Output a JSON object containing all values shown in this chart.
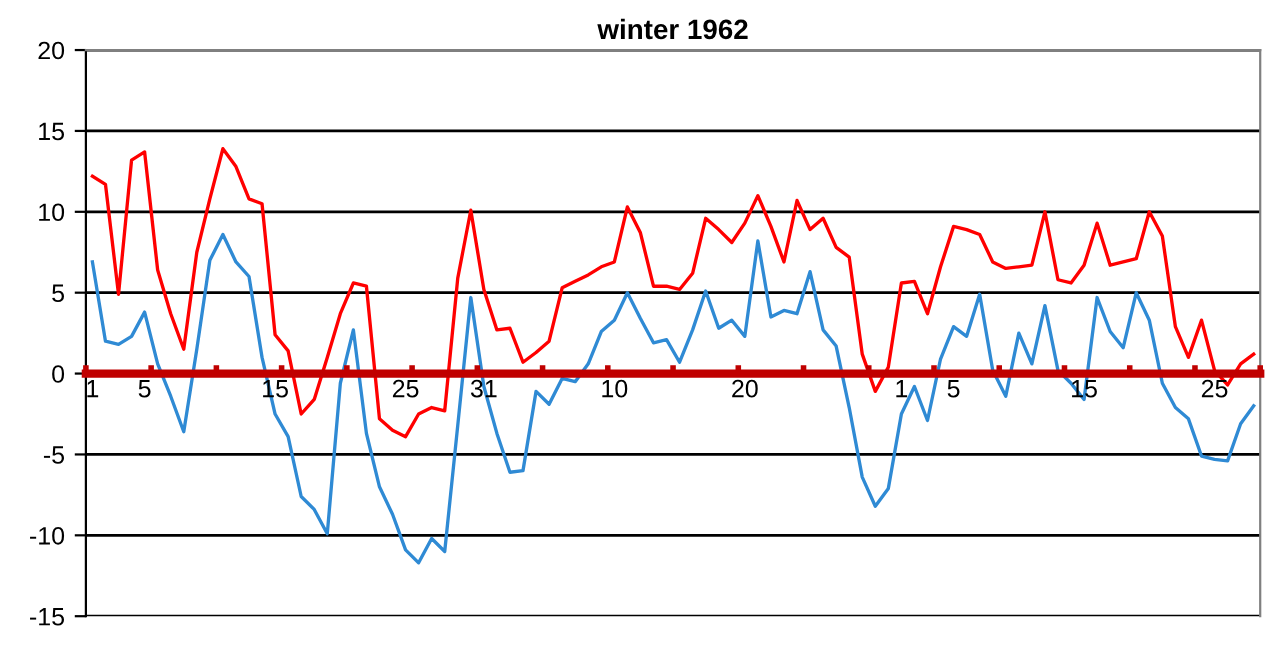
{
  "chart_data": {
    "type": "line",
    "title": "winter 1962",
    "categories": [
      "1",
      null,
      null,
      null,
      "5",
      null,
      null,
      null,
      null,
      null,
      null,
      null,
      null,
      null,
      "15",
      null,
      null,
      null,
      null,
      null,
      null,
      null,
      null,
      null,
      "25",
      null,
      null,
      null,
      null,
      null,
      "31",
      null,
      null,
      null,
      null,
      null,
      null,
      null,
      null,
      null,
      "10",
      null,
      null,
      null,
      null,
      null,
      null,
      null,
      null,
      null,
      "20",
      null,
      null,
      null,
      null,
      null,
      null,
      null,
      null,
      null,
      null,
      null,
      "1",
      null,
      null,
      null,
      "5",
      null,
      null,
      null,
      null,
      null,
      null,
      null,
      null,
      null,
      "15",
      null,
      null,
      null,
      null,
      null,
      null,
      null,
      null,
      null,
      "25",
      null,
      null,
      null
    ],
    "series": [
      {
        "color": "#ff0000",
        "values": [
          12.2,
          11.7,
          4.9,
          13.2,
          13.7,
          6.4,
          3.7,
          1.5,
          7.5,
          10.8,
          13.9,
          12.8,
          10.8,
          10.5,
          2.4,
          1.4,
          -2.5,
          -1.6,
          1.0,
          3.7,
          5.6,
          5.4,
          -2.8,
          -3.5,
          -3.9,
          -2.5,
          -2.1,
          -2.3,
          5.9,
          10.1,
          5.2,
          2.7,
          2.8,
          0.7,
          1.3,
          2.0,
          5.3,
          5.7,
          6.1,
          6.6,
          6.9,
          10.3,
          8.7,
          5.4,
          5.4,
          5.2,
          6.2,
          9.6,
          8.9,
          8.1,
          9.3,
          11.0,
          9.1,
          6.9,
          10.7,
          8.9,
          9.6,
          7.8,
          7.2,
          1.2,
          -1.1,
          0.4,
          5.6,
          5.7,
          3.7,
          6.6,
          9.1,
          8.9,
          8.6,
          6.9,
          6.5,
          6.6,
          6.7,
          10.0,
          5.8,
          5.6,
          6.7,
          9.3,
          6.7,
          6.9,
          7.1,
          10.0,
          8.5,
          2.9,
          1.0,
          3.3,
          0.2,
          -0.7,
          0.6,
          1.2
        ]
      },
      {
        "color": "#2f8ad4",
        "values": [
          6.9,
          2.0,
          1.8,
          2.3,
          3.8,
          0.6,
          -1.4,
          -3.6,
          1.5,
          7.0,
          8.6,
          6.9,
          6.0,
          1.0,
          -2.5,
          -3.9,
          -7.6,
          -8.4,
          -9.9,
          -0.6,
          2.7,
          -3.7,
          -7.0,
          -8.7,
          -10.9,
          -11.7,
          -10.2,
          -11.0,
          -3.2,
          4.7,
          -0.8,
          -3.7,
          -6.1,
          -6.0,
          -1.1,
          -1.9,
          -0.3,
          -0.5,
          0.6,
          2.6,
          3.3,
          5.0,
          3.4,
          1.9,
          2.1,
          0.7,
          2.7,
          5.1,
          2.8,
          3.3,
          2.3,
          8.2,
          3.5,
          3.9,
          3.7,
          6.3,
          2.7,
          1.7,
          -2.1,
          -6.4,
          -8.2,
          -7.1,
          -2.5,
          -0.8,
          -2.9,
          0.9,
          2.9,
          2.3,
          4.9,
          0.2,
          -1.4,
          2.5,
          0.6,
          4.2,
          0.2,
          -0.6,
          -1.6,
          4.7,
          2.6,
          1.6,
          5.0,
          3.3,
          -0.6,
          -2.1,
          -2.8,
          -5.1,
          -5.3,
          -5.4,
          -3.1,
          -2.0
        ]
      }
    ],
    "ylim": [
      -15,
      20
    ],
    "yticks": [
      -15,
      -10,
      -5,
      0,
      5,
      10,
      15,
      20
    ],
    "grid": "y",
    "legend": false,
    "marker": "none",
    "line_style": "solid"
  }
}
